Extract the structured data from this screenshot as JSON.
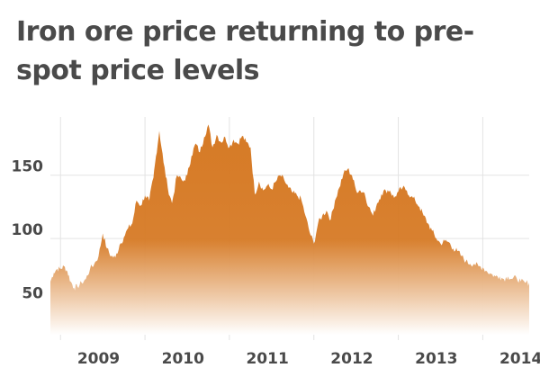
{
  "chart_data": {
    "type": "area",
    "title": "Iron ore price returning to pre-spot price levels",
    "xlabel": "",
    "ylabel": "",
    "x_ticks": [
      "2009",
      "2010",
      "2011",
      "2012",
      "2013",
      "2014"
    ],
    "y_ticks": [
      50,
      100,
      150
    ],
    "xlim": [
      2008.88,
      2014.55
    ],
    "ylim": [
      24,
      196
    ],
    "grid": {
      "y": true,
      "x": true
    },
    "legend": "none",
    "colors": {
      "fill_top": "#d67a25",
      "fill_bottom": "#ffffff",
      "grid": "#e3e3e3",
      "text": "#4a4a4a"
    },
    "series": [
      {
        "x": [
          2008.88,
          2008.92,
          2008.96,
          2009.0,
          2009.04,
          2009.08,
          2009.12,
          2009.16,
          2009.2,
          2009.25,
          2009.3,
          2009.35,
          2009.4,
          2009.45,
          2009.5,
          2009.55,
          2009.6,
          2009.65,
          2009.7,
          2009.75,
          2009.8,
          2009.85,
          2009.9,
          2009.95,
          2010.0,
          2010.05,
          2010.1,
          2010.13,
          2010.17,
          2010.22,
          2010.27,
          2010.32,
          2010.38,
          2010.45,
          2010.5,
          2010.55,
          2010.6,
          2010.65,
          2010.7,
          2010.75,
          2010.8,
          2010.85,
          2010.9,
          2010.95,
          2011.0,
          2011.05,
          2011.1,
          2011.15,
          2011.2,
          2011.25,
          2011.3,
          2011.35,
          2011.4,
          2011.45,
          2011.5,
          2011.55,
          2011.6,
          2011.65,
          2011.7,
          2011.75,
          2011.8,
          2011.85,
          2011.9,
          2011.95,
          2012.0,
          2012.05,
          2012.1,
          2012.15,
          2012.2,
          2012.25,
          2012.3,
          2012.35,
          2012.4,
          2012.45,
          2012.5,
          2012.55,
          2012.6,
          2012.65,
          2012.7,
          2012.75,
          2012.8,
          2012.85,
          2012.9,
          2012.95,
          2013.0,
          2013.05,
          2013.1,
          2013.15,
          2013.2,
          2013.25,
          2013.3,
          2013.35,
          2013.4,
          2013.45,
          2013.5,
          2013.55,
          2013.6,
          2013.65,
          2013.7,
          2013.75,
          2013.8,
          2013.85,
          2013.9,
          2013.95,
          2014.0,
          2014.05,
          2014.1,
          2014.15,
          2014.2,
          2014.25,
          2014.3,
          2014.35,
          2014.4,
          2014.45,
          2014.5,
          2014.55
        ],
        "values": [
          66,
          73,
          76,
          76,
          78,
          74,
          66,
          61,
          62,
          65,
          68,
          76,
          80,
          86,
          104,
          92,
          86,
          85,
          95,
          101,
          108,
          112,
          130,
          126,
          134,
          130,
          148,
          165,
          185,
          160,
          140,
          128,
          150,
          145,
          150,
          165,
          175,
          168,
          180,
          190,
          172,
          182,
          176,
          180,
          172,
          178,
          175,
          181,
          176,
          172,
          135,
          145,
          138,
          142,
          139,
          145,
          150,
          146,
          140,
          136,
          134,
          131,
          118,
          105,
          96,
          112,
          118,
          122,
          115,
          130,
          140,
          151,
          155,
          150,
          138,
          138,
          136,
          125,
          118,
          128,
          135,
          138,
          138,
          132,
          137,
          140,
          138,
          133,
          130,
          125,
          118,
          112,
          106,
          100,
          96,
          98,
          97,
          92,
          90,
          86,
          82,
          80,
          80,
          78,
          77,
          74,
          72,
          70,
          70,
          68,
          70,
          68,
          69,
          66,
          65,
          65
        ]
      }
    ]
  }
}
